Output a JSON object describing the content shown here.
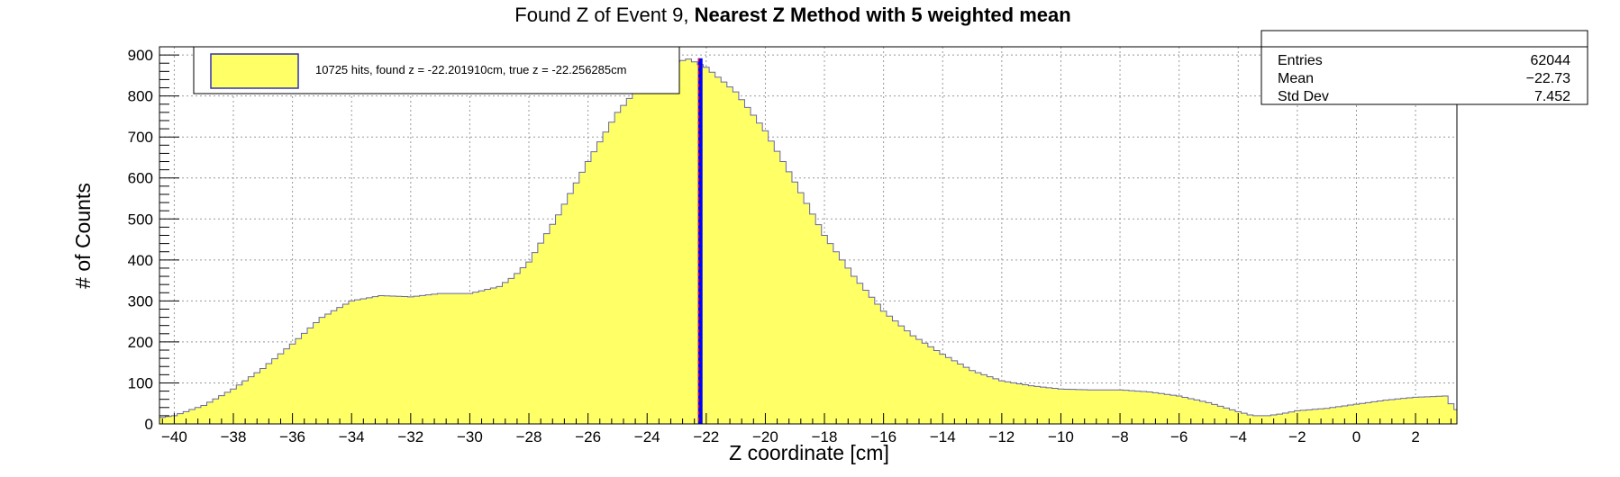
{
  "title": {
    "prefix": "Found Z of Event 9, ",
    "bold": "Nearest Z Method with 5 weighted mean"
  },
  "legend": {
    "label": "10725 hits, found z = -22.201910cm, true z = -22.256285cm",
    "fill_color": "#ffff66"
  },
  "stats": {
    "rows": [
      {
        "name": "Entries",
        "value": "62044"
      },
      {
        "name": "Mean",
        "value": "−22.73"
      },
      {
        "name": "Std Dev",
        "value": "7.452"
      }
    ]
  },
  "chart_data": {
    "type": "area",
    "title": "Found Z of Event 9, Nearest Z Method with 5 weighted mean",
    "xlabel": "Z coordinate [cm]",
    "ylabel": "# of Counts",
    "xlim": [
      -40.5,
      3.4
    ],
    "ylim": [
      0,
      920
    ],
    "x_ticks": [
      -40,
      -38,
      -36,
      -34,
      -32,
      -30,
      -28,
      -26,
      -24,
      -22,
      -20,
      -18,
      -16,
      -14,
      -12,
      -10,
      -8,
      -6,
      -4,
      -2,
      0,
      2
    ],
    "y_ticks": [
      0,
      100,
      200,
      300,
      400,
      500,
      600,
      700,
      800,
      900
    ],
    "grid": true,
    "colors": {
      "fill": "#ffff66",
      "outline": "#6666aa",
      "found_line": "#0000ff",
      "true_line": "#ff0000"
    },
    "histogram_profile": {
      "x": [
        -40.5,
        -40,
        -39,
        -38,
        -37,
        -36,
        -35,
        -34,
        -33,
        -32,
        -31,
        -30,
        -29,
        -28.5,
        -28,
        -27,
        -26,
        -25,
        -24,
        -23,
        -22.6,
        -22,
        -21,
        -20,
        -19,
        -18,
        -17,
        -16,
        -15,
        -14,
        -13,
        -12,
        -11,
        -10,
        -9,
        -8,
        -7,
        -6,
        -5,
        -4,
        -3.5,
        -3,
        -2.5,
        -2,
        -1,
        0,
        1,
        2,
        3,
        3.4
      ],
      "y": [
        15,
        20,
        45,
        85,
        135,
        195,
        260,
        300,
        313,
        310,
        318,
        318,
        335,
        360,
        395,
        510,
        640,
        760,
        845,
        883,
        890,
        870,
        810,
        715,
        590,
        460,
        360,
        275,
        215,
        170,
        130,
        105,
        93,
        85,
        83,
        83,
        78,
        68,
        52,
        30,
        20,
        20,
        25,
        32,
        38,
        48,
        58,
        65,
        68,
        30
      ]
    },
    "markers": [
      {
        "name": "found z",
        "x": -22.20191
      },
      {
        "name": "true z",
        "x": -22.256285
      }
    ]
  }
}
